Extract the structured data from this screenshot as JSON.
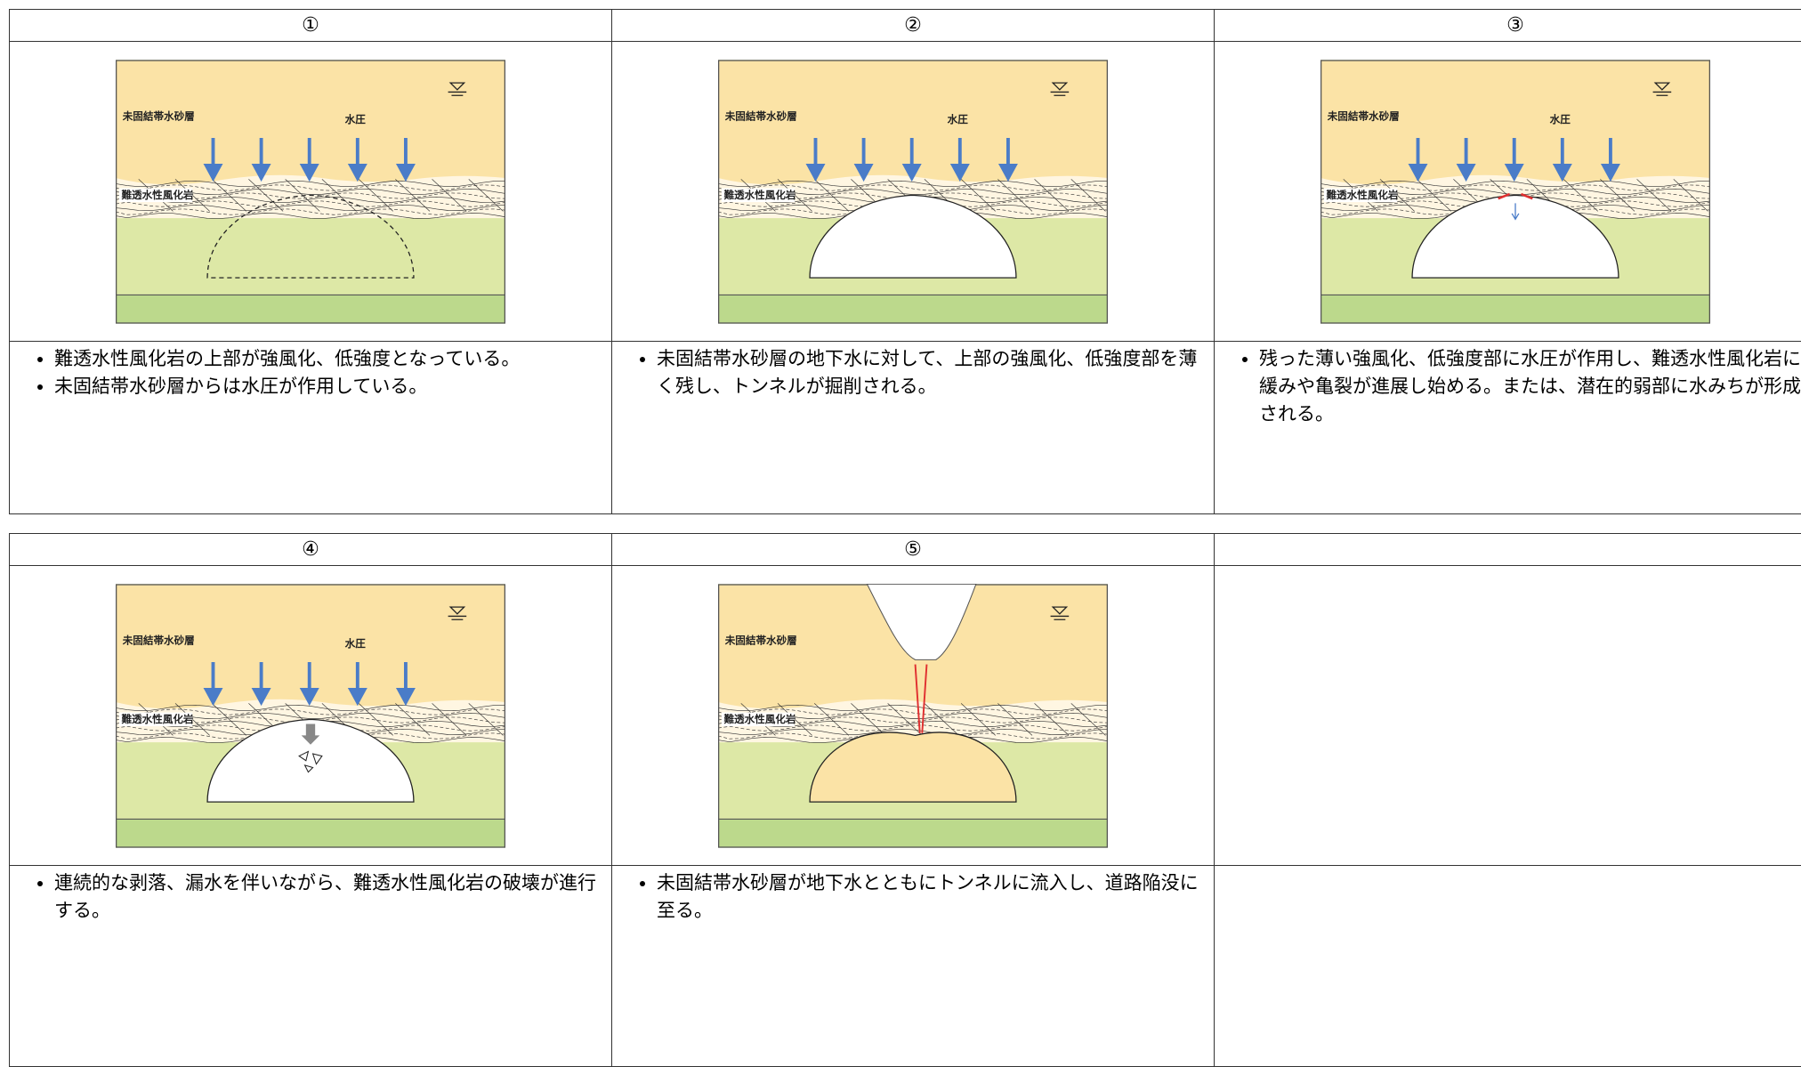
{
  "tables": [
    {
      "columns": [
        {
          "header": "①",
          "figure": {
            "sand_label": "未固結帯水砂層",
            "pressure_label": "水圧",
            "rock_label": "難透水性風化岩"
          },
          "bullets": [
            "難透水性風化岩の上部が強風化、低強度となっている。",
            "未固結帯水砂層からは水圧が作用している。"
          ]
        },
        {
          "header": "②",
          "figure": {
            "sand_label": "未固結帯水砂層",
            "pressure_label": "水圧",
            "rock_label": "難透水性風化岩"
          },
          "bullets": [
            "未固結帯水砂層の地下水に対して、上部の強風化、低強度部を薄く残し、トンネルが掘削される。"
          ]
        },
        {
          "header": "③",
          "figure": {
            "sand_label": "未固結帯水砂層",
            "pressure_label": "水圧",
            "rock_label": "難透水性風化岩"
          },
          "bullets": [
            "残った薄い強風化、低強度部に水圧が作用し、難透水性風化岩に緩みや亀裂が進展し始める。または、潜在的弱部に水みちが形成される。"
          ]
        }
      ]
    },
    {
      "columns": [
        {
          "header": "④",
          "figure": {
            "sand_label": "未固結帯水砂層",
            "pressure_label": "水圧",
            "rock_label": "難透水性風化岩"
          },
          "bullets": [
            "連続的な剥落、漏水を伴いながら、難透水性風化岩の破壊が進行する。"
          ]
        },
        {
          "header": "⑤",
          "figure": {
            "sand_label": "未固結帯水砂層",
            "rock_label": "難透水性風化岩"
          },
          "bullets": [
            "未固結帯水砂層が地下水とともにトンネルに流入し、道路陥没に至る。"
          ]
        }
      ]
    }
  ]
}
